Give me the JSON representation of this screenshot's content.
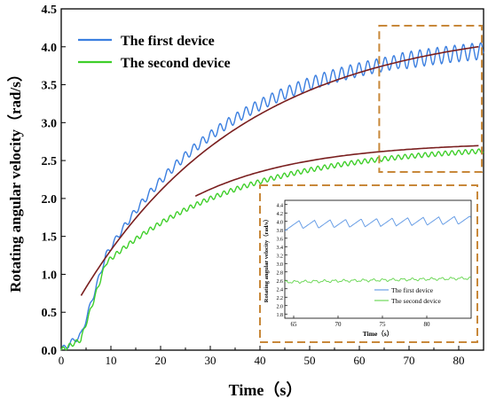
{
  "chart_data": {
    "type": "line",
    "xlabel": "Time（s）",
    "ylabel": "Rotating angular velocity（rad/s）",
    "xlim": [
      0,
      85
    ],
    "ylim": [
      0,
      4.5
    ],
    "xticks": [
      0,
      10,
      20,
      30,
      40,
      50,
      60,
      70,
      80
    ],
    "yticks": [
      0.0,
      0.5,
      1.0,
      1.5,
      2.0,
      2.5,
      3.0,
      3.5,
      4.0,
      4.5
    ],
    "ytick_labels": [
      "0.0",
      "0.5",
      "1.0",
      "1.5",
      "2.0",
      "2.5",
      "3.0",
      "3.5",
      "4.0",
      "4.5"
    ],
    "legend_position": "top-left",
    "grid": false,
    "series": [
      {
        "name": "The first device",
        "color": "#3b7fe0",
        "x": [
          0,
          2,
          4,
          5,
          6,
          7,
          8,
          9,
          10,
          12,
          14,
          16,
          18,
          20,
          22,
          24,
          26,
          28,
          30,
          32,
          34,
          36,
          38,
          40,
          42,
          44,
          46,
          48,
          50,
          52,
          54,
          56,
          58,
          60,
          62,
          64,
          66,
          68,
          70,
          72,
          74,
          76,
          78,
          80,
          82,
          84
        ],
        "values": [
          0.0,
          0.05,
          0.2,
          0.4,
          0.7,
          0.9,
          1.1,
          1.25,
          1.35,
          1.55,
          1.75,
          1.92,
          2.05,
          2.18,
          2.3,
          2.42,
          2.52,
          2.65,
          2.75,
          2.85,
          2.95,
          3.05,
          3.13,
          3.22,
          3.3,
          3.37,
          3.44,
          3.5,
          3.56,
          3.61,
          3.66,
          3.7,
          3.75,
          3.79,
          3.83,
          3.86,
          3.89,
          3.92,
          3.95,
          3.97,
          3.99,
          4.0,
          4.01,
          4.02,
          4.02,
          4.01
        ]
      },
      {
        "name": "The second device",
        "color": "#3fcf2a",
        "x": [
          0,
          2,
          4,
          5,
          6,
          7,
          8,
          9,
          10,
          12,
          14,
          16,
          18,
          20,
          22,
          24,
          26,
          28,
          30,
          35,
          40,
          45,
          50,
          55,
          60,
          65,
          70,
          75,
          80,
          84
        ],
        "values": [
          0.0,
          0.03,
          0.15,
          0.35,
          0.6,
          0.85,
          1.02,
          1.12,
          1.2,
          1.35,
          1.47,
          1.58,
          1.68,
          1.78,
          1.86,
          1.94,
          2.0,
          2.06,
          2.1,
          2.2,
          2.3,
          2.38,
          2.45,
          2.51,
          2.56,
          2.6,
          2.62,
          2.64,
          2.65,
          2.65
        ]
      }
    ],
    "fit_color": "#7a1f1f",
    "inset": {
      "xlabel": "Time（s）",
      "ylabel": "Rotating angular velocity（rad/s）",
      "xlim": [
        64,
        85
      ],
      "ylim": [
        1.7,
        4.5
      ],
      "xticks": [
        65,
        70,
        75,
        80
      ],
      "yticks": [
        1.8,
        2.0,
        2.2,
        2.4,
        2.6,
        2.8,
        3.0,
        3.2,
        3.4,
        3.6,
        3.8,
        4.0,
        4.2,
        4.4
      ],
      "ytick_labels": [
        "1.8",
        "2.0",
        "2.2",
        "2.4",
        "2.6",
        "2.8",
        "3.0",
        "3.2",
        "3.4",
        "3.6",
        "3.8",
        "4.0",
        "4.2",
        "4.4"
      ],
      "legend_position": "bottom-right",
      "series": [
        {
          "name": "The first device",
          "color": "#6a9fe6",
          "x": [
            64,
            85
          ],
          "values": [
            3.9,
            4.02
          ]
        },
        {
          "name": "The second device",
          "color": "#6fd85a",
          "x": [
            64,
            85
          ],
          "values": [
            2.56,
            2.65
          ]
        }
      ]
    }
  }
}
